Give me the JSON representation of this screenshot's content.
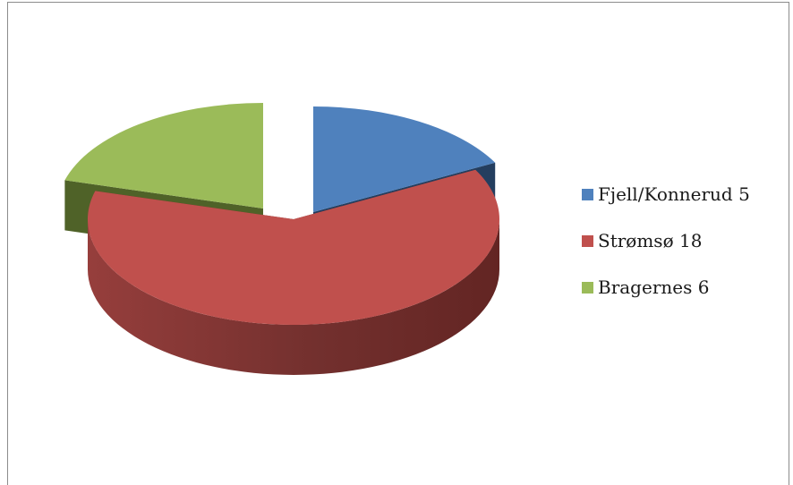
{
  "chart_data": {
    "type": "pie",
    "style": "3d-exploded",
    "slices": [
      {
        "label": "Fjell/Konnerud",
        "value": 5,
        "color": "#4f81bd",
        "dark": "#243e5f"
      },
      {
        "label": "Strømsø",
        "value": 18,
        "color": "#c0504d",
        "dark": "#632523"
      },
      {
        "label": "Bragernes",
        "value": 6,
        "color": "#9bbb59",
        "dark": "#4f6228"
      }
    ],
    "legend": {
      "position": "right",
      "entries": [
        "Fjell/Konnerud 5",
        "Strømsø 18",
        "Bragernes 6"
      ]
    }
  }
}
